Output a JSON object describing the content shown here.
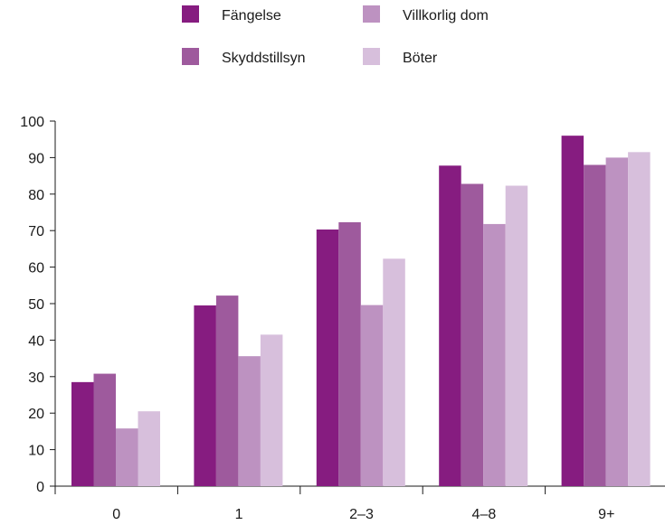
{
  "chart_data": {
    "type": "bar",
    "categories": [
      "0",
      "1",
      "2–3",
      "4–8",
      "9+"
    ],
    "series": [
      {
        "name": "Fängelse",
        "color": "#861c80",
        "values": [
          28.5,
          49.5,
          70.3,
          87.8,
          96
        ]
      },
      {
        "name": "Skyddstillsyn",
        "color": "#9e5a9d",
        "values": [
          30.8,
          52.2,
          72.3,
          82.8,
          88
        ]
      },
      {
        "name": "Villkorlig dom",
        "color": "#bd92c1",
        "values": [
          15.8,
          35.6,
          49.6,
          71.8,
          90
        ]
      },
      {
        "name": "Böter",
        "color": "#d7bfdc",
        "values": [
          20.5,
          41.5,
          62.3,
          82.3,
          91.5
        ]
      }
    ],
    "ylim": [
      0,
      100
    ],
    "yticks": [
      0,
      10,
      20,
      30,
      40,
      50,
      60,
      70,
      80,
      90,
      100
    ],
    "grid": false,
    "legend_position": "top-center",
    "title": "",
    "xlabel": "",
    "ylabel": ""
  }
}
